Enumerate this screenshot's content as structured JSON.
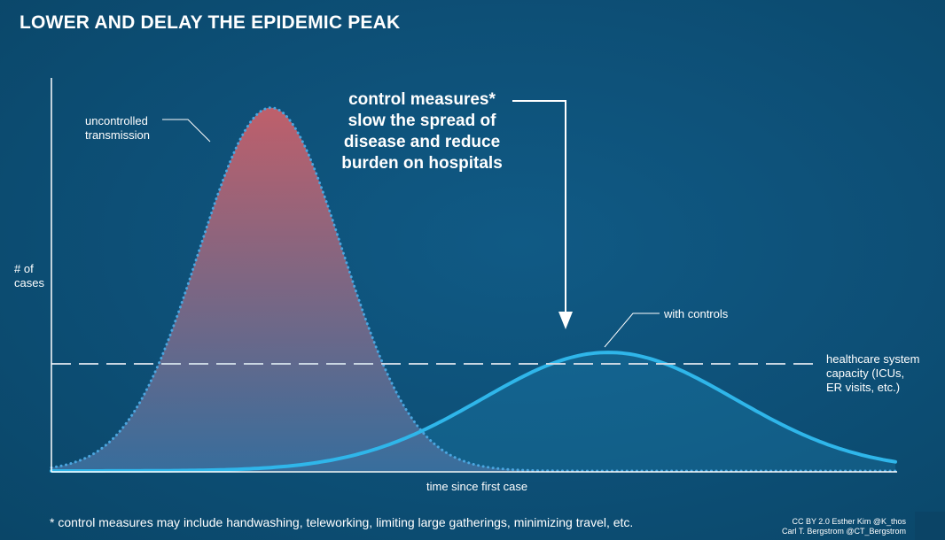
{
  "title": "LOWER AND DELAY THE EPIDEMIC PEAK",
  "callout": {
    "line1": "control measures*",
    "line2": "slow the spread of",
    "line3": "disease and reduce",
    "line4": "burden on hospitals"
  },
  "footnote": "* control measures may include handwashing, teleworking, limiting large gatherings, minimizing travel, etc.",
  "credit": {
    "line1": "CC BY 2.0  Esther Kim  @K_thos",
    "line2": "Carl T. Bergstrom  @CT_Bergstrom"
  },
  "colors": {
    "background": "#0d4f76",
    "uncontrolled_top": "#c8606a",
    "uncontrolled_bottom": "#3a6f9e",
    "uncontrolled_outline": "#4aa6e0",
    "controlled_line": "#2fb6ea",
    "capacity_line": "#c9d6e2"
  },
  "chart_data": {
    "type": "area",
    "xlabel": "time since first case",
    "ylabel_line1": "# of",
    "ylabel_line2": "cases",
    "x_range": [
      0,
      100
    ],
    "y_range": [
      0,
      100
    ],
    "grid": false,
    "series": [
      {
        "name": "uncontrolled transmission",
        "peak_x": 26,
        "peak_y": 95,
        "spread": 8.5,
        "style": "dotted-filled"
      },
      {
        "name": "with controls",
        "peak_x": 66,
        "peak_y": 31,
        "spread": 15,
        "style": "solid-filled"
      }
    ],
    "threshold": {
      "name": "healthcare system capacity (ICUs, ER visits, etc.)",
      "label_line1": "healthcare system",
      "label_line2": "capacity (ICUs,",
      "label_line3": "ER visits, etc.)",
      "y": 28
    },
    "annotations": {
      "uncontrolled_line1": "uncontrolled",
      "uncontrolled_line2": "transmission",
      "controls": "with controls"
    }
  }
}
